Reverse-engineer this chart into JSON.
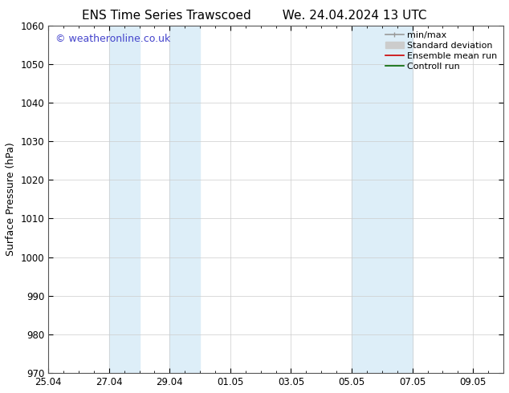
{
  "title_left": "ENS Time Series Trawscoed",
  "title_right": "We. 24.04.2024 13 UTC",
  "ylabel": "Surface Pressure (hPa)",
  "ylim": [
    970,
    1060
  ],
  "yticks": [
    970,
    980,
    990,
    1000,
    1010,
    1020,
    1030,
    1040,
    1050,
    1060
  ],
  "xtick_labels": [
    "25.04",
    "27.04",
    "29.04",
    "01.05",
    "03.05",
    "05.05",
    "07.05",
    "09.05"
  ],
  "xtick_positions": [
    0,
    4,
    8,
    12,
    16,
    20,
    24,
    28
  ],
  "xlim": [
    0,
    30
  ],
  "shaded_regions": [
    {
      "x_start": 4,
      "x_end": 6,
      "color": "#ddeef8"
    },
    {
      "x_start": 8,
      "x_end": 10,
      "color": "#ddeef8"
    },
    {
      "x_start": 20,
      "x_end": 22,
      "color": "#ddeef8"
    },
    {
      "x_start": 22,
      "x_end": 24,
      "color": "#ddeef8"
    }
  ],
  "watermark_text": "© weatheronline.co.uk",
  "watermark_color": "#4444cc",
  "watermark_fontsize": 9,
  "legend_entries": [
    {
      "label": "min/max",
      "color": "#999999",
      "lw": 1.2
    },
    {
      "label": "Standard deviation",
      "color": "#cccccc",
      "lw": 7
    },
    {
      "label": "Ensemble mean run",
      "color": "#cc0000",
      "lw": 1.2
    },
    {
      "label": "Controll run",
      "color": "#006600",
      "lw": 1.2
    }
  ],
  "bg_color": "#ffffff",
  "grid_color": "#cccccc",
  "title_fontsize": 11,
  "axis_fontsize": 9,
  "tick_fontsize": 8.5,
  "legend_fontsize": 8
}
